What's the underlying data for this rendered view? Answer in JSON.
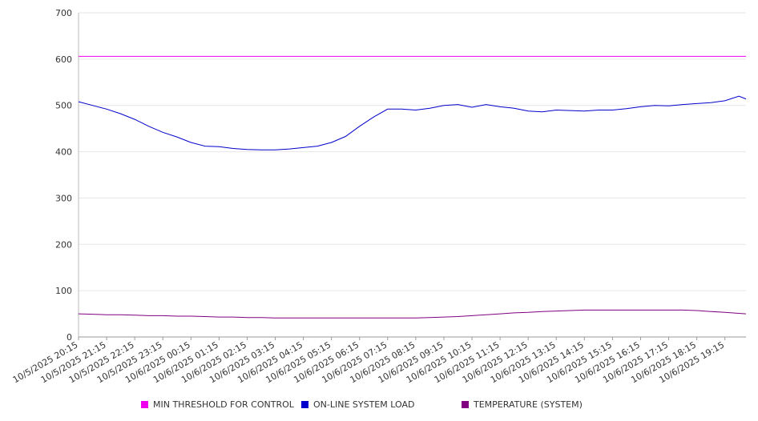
{
  "chart_data": {
    "type": "line",
    "title": "",
    "xlabel": "",
    "ylabel": "",
    "ylim": [
      0,
      700
    ],
    "yticks": [
      0,
      100,
      200,
      300,
      400,
      500,
      600,
      700
    ],
    "grid": true,
    "legend_position": "bottom",
    "xtick_labels": [
      "10/5/2025 20:15",
      "10/5/2025 21:15",
      "10/5/2025 22:15",
      "10/5/2025 23:15",
      "10/6/2025 00:15",
      "10/6/2025 01:15",
      "10/6/2025 02:15",
      "10/6/2025 03:15",
      "10/6/2025 04:15",
      "10/6/2025 05:15",
      "10/6/2025 06:15",
      "10/6/2025 07:15",
      "10/6/2025 08:15",
      "10/6/2025 09:15",
      "10/6/2025 10:15",
      "10/6/2025 11:15",
      "10/6/2025 12:15",
      "10/6/2025 13:15",
      "10/6/2025 14:15",
      "10/6/2025 15:15",
      "10/6/2025 16:15",
      "10/6/2025 17:15",
      "10/6/2025 18:15",
      "10/6/2025 19:15"
    ],
    "x": [
      "10/5/2025 20:15",
      "10/5/2025 20:45",
      "10/5/2025 21:15",
      "10/5/2025 21:45",
      "10/5/2025 22:15",
      "10/5/2025 22:45",
      "10/5/2025 23:15",
      "10/5/2025 23:45",
      "10/6/2025 00:15",
      "10/6/2025 00:45",
      "10/6/2025 01:15",
      "10/6/2025 01:45",
      "10/6/2025 02:15",
      "10/6/2025 02:45",
      "10/6/2025 03:15",
      "10/6/2025 03:45",
      "10/6/2025 04:15",
      "10/6/2025 04:45",
      "10/6/2025 05:15",
      "10/6/2025 05:45",
      "10/6/2025 06:15",
      "10/6/2025 06:45",
      "10/6/2025 07:15",
      "10/6/2025 07:45",
      "10/6/2025 08:15",
      "10/6/2025 08:45",
      "10/6/2025 09:15",
      "10/6/2025 09:45",
      "10/6/2025 10:15",
      "10/6/2025 10:45",
      "10/6/2025 11:15",
      "10/6/2025 11:45",
      "10/6/2025 12:15",
      "10/6/2025 12:45",
      "10/6/2025 13:15",
      "10/6/2025 13:45",
      "10/6/2025 14:15",
      "10/6/2025 14:45",
      "10/6/2025 15:15",
      "10/6/2025 15:45",
      "10/6/2025 16:15",
      "10/6/2025 16:45",
      "10/6/2025 17:15",
      "10/6/2025 17:45",
      "10/6/2025 18:15",
      "10/6/2025 18:45",
      "10/6/2025 19:15",
      "10/6/2025 19:45",
      "10/6/2025 20:00"
    ],
    "series": [
      {
        "name": "MIN THRESHOLD FOR CONTROL",
        "color": "#ee00ee",
        "values": [
          606,
          606,
          606,
          606,
          606,
          606,
          606,
          606,
          606,
          606,
          606,
          606,
          606,
          606,
          606,
          606,
          606,
          606,
          606,
          606,
          606,
          606,
          606,
          606,
          606,
          606,
          606,
          606,
          606,
          606,
          606,
          606,
          606,
          606,
          606,
          606,
          606,
          606,
          606,
          606,
          606,
          606,
          606,
          606,
          606,
          606,
          606,
          606,
          606
        ]
      },
      {
        "name": "ON-LINE SYSTEM LOAD",
        "color": "#0000cc",
        "values": [
          508,
          500,
          492,
          482,
          470,
          455,
          442,
          432,
          420,
          412,
          411,
          407,
          405,
          404,
          404,
          406,
          409,
          412,
          420,
          433,
          455,
          475,
          492,
          492,
          490,
          494,
          500,
          502,
          496,
          502,
          497,
          494,
          488,
          486,
          490,
          489,
          488,
          490,
          490,
          493,
          497,
          500,
          499,
          502,
          504,
          506,
          510,
          520,
          514
        ]
      },
      {
        "name": "TEMPERATURE (SYSTEM)",
        "color": "#800080",
        "values": [
          50,
          49,
          48,
          48,
          47,
          46,
          46,
          45,
          45,
          44,
          43,
          43,
          42,
          42,
          41,
          41,
          41,
          41,
          41,
          41,
          41,
          41,
          41,
          41,
          41,
          42,
          43,
          44,
          46,
          48,
          50,
          52,
          53,
          55,
          56,
          57,
          58,
          58,
          58,
          58,
          58,
          58,
          58,
          58,
          57,
          55,
          53,
          51,
          50
        ]
      }
    ]
  }
}
